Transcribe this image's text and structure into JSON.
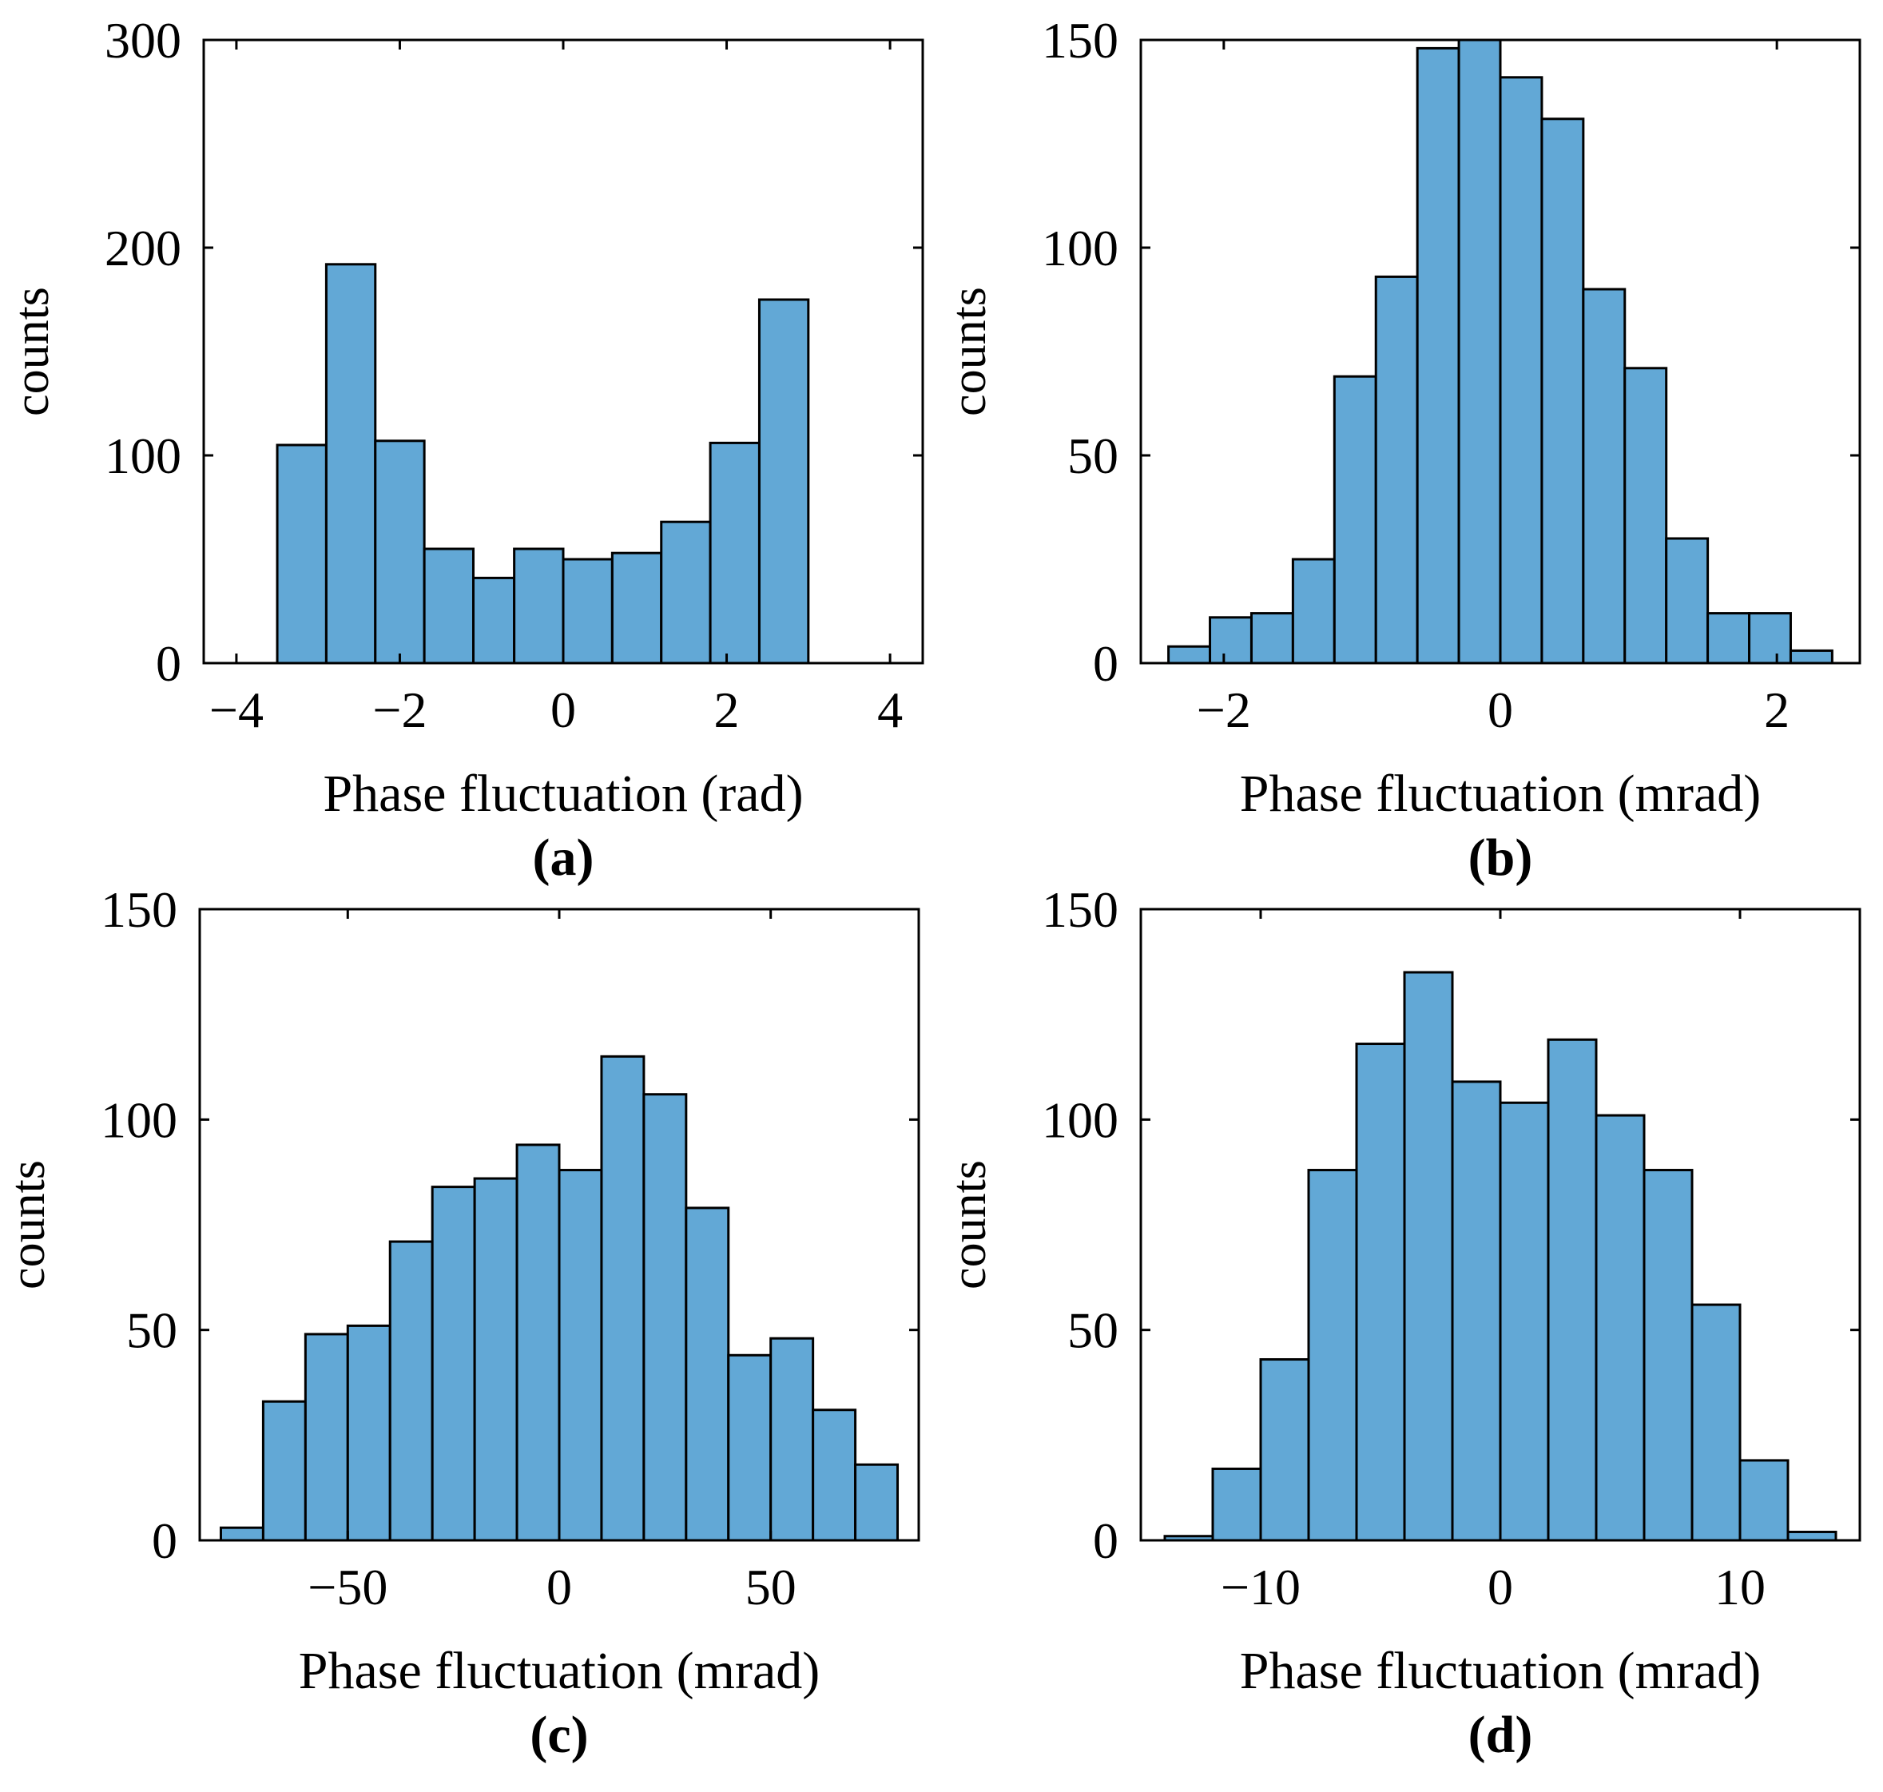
{
  "colors": {
    "bar_fill": "#62a8d6",
    "bar_stroke": "#000000",
    "axis": "#000000"
  },
  "chart_data": [
    {
      "type": "bar",
      "panel_label": "(a)",
      "xlabel": "Phase fluctuation (rad)",
      "ylabel": "counts",
      "xlim": [
        -4.4,
        4.4
      ],
      "ylim": [
        0,
        300
      ],
      "xticks": [
        -4,
        -2,
        0,
        2,
        4
      ],
      "xtick_labels": [
        "−4",
        "−2",
        "0",
        "2",
        "4"
      ],
      "yticks": [
        0,
        100,
        200,
        300
      ],
      "ytick_labels": [
        "0",
        "100",
        "200",
        "300"
      ],
      "bin_edges": [
        -3.5,
        -2.9,
        -2.3,
        -1.7,
        -1.1,
        -0.6,
        0.0,
        0.6,
        1.2,
        1.8,
        2.4,
        3.0
      ],
      "values": [
        105,
        192,
        107,
        55,
        41,
        55,
        50,
        53,
        68,
        106,
        175
      ]
    },
    {
      "type": "bar",
      "panel_label": "(b)",
      "xlabel": "Phase fluctuation (mrad)",
      "ylabel": "counts",
      "xlim": [
        -2.6,
        2.6
      ],
      "ylim": [
        0,
        150
      ],
      "xticks": [
        -2,
        0,
        2
      ],
      "xtick_labels": [
        "−2",
        "0",
        "2"
      ],
      "yticks": [
        0,
        50,
        100,
        150
      ],
      "ytick_labels": [
        "0",
        "50",
        "100",
        "150"
      ],
      "bin_edges": [
        -2.4,
        -2.1,
        -1.8,
        -1.5,
        -1.2,
        -0.9,
        -0.6,
        -0.3,
        0.0,
        0.3,
        0.6,
        0.9,
        1.2,
        1.5,
        1.8,
        2.1,
        2.4
      ],
      "values": [
        4,
        11,
        12,
        25,
        69,
        93,
        148,
        150,
        141,
        131,
        90,
        71,
        30,
        12,
        12,
        3
      ]
    },
    {
      "type": "bar",
      "panel_label": "(c)",
      "xlabel": "Phase fluctuation (mrad)",
      "ylabel": "counts",
      "xlim": [
        -85,
        85
      ],
      "ylim": [
        0,
        150
      ],
      "xticks": [
        -50,
        0,
        50
      ],
      "xtick_labels": [
        "−50",
        "0",
        "50"
      ],
      "yticks": [
        0,
        50,
        100,
        150
      ],
      "ytick_labels": [
        "0",
        "50",
        "100",
        "150"
      ],
      "bin_edges": [
        -80,
        -70,
        -60,
        -50,
        -40,
        -30,
        -20,
        -10,
        0,
        10,
        20,
        30,
        40,
        50,
        60,
        70,
        80
      ],
      "values": [
        3,
        33,
        49,
        51,
        71,
        84,
        86,
        94,
        88,
        115,
        106,
        79,
        44,
        48,
        31,
        18
      ]
    },
    {
      "type": "bar",
      "panel_label": "(d)",
      "xlabel": "Phase fluctuation (mrad)",
      "ylabel": "counts",
      "xlim": [
        -15,
        15
      ],
      "ylim": [
        0,
        150
      ],
      "xticks": [
        -10,
        0,
        10
      ],
      "xtick_labels": [
        "−10",
        "0",
        "10"
      ],
      "yticks": [
        0,
        50,
        100,
        150
      ],
      "ytick_labels": [
        "0",
        "50",
        "100",
        "150"
      ],
      "bin_edges": [
        -14,
        -12,
        -10,
        -8,
        -6,
        -4,
        -2,
        0,
        2,
        4,
        6,
        8,
        10,
        12,
        14
      ],
      "values": [
        1,
        17,
        43,
        88,
        118,
        135,
        109,
        104,
        119,
        101,
        88,
        56,
        19,
        2
      ]
    }
  ]
}
